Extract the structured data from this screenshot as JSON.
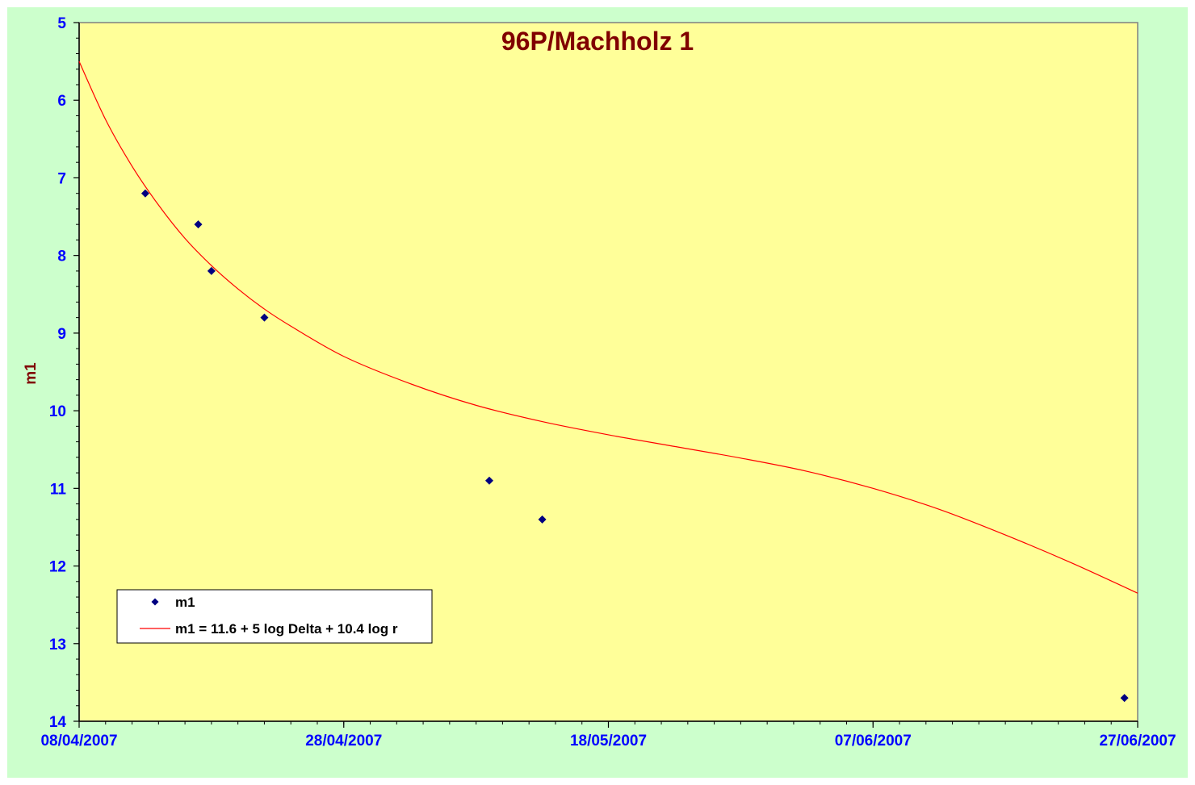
{
  "colors": {
    "chart_area": "#ccffcc",
    "plot_area": "#ffff99",
    "title": "#800000",
    "axis_title": "#800000",
    "tick_labels": "#0000ff",
    "points": "#000080",
    "fit_line": "#ff0000"
  },
  "chart_data": {
    "type": "scatter",
    "title": "96P/Machholz 1",
    "xlabel": "",
    "ylabel": "m1",
    "x_type": "date",
    "xlim": [
      "08/04/2007",
      "27/06/2007"
    ],
    "x_ticks": [
      "08/04/2007",
      "28/04/2007",
      "18/05/2007",
      "07/06/2007",
      "27/06/2007"
    ],
    "ylim": [
      5,
      14
    ],
    "y_inverted": true,
    "y_ticks": [
      5,
      6,
      7,
      8,
      9,
      10,
      11,
      12,
      13,
      14
    ],
    "grid": false,
    "legend_position": "bottom-left",
    "series": [
      {
        "name": "m1",
        "type": "scatter",
        "marker": "diamond",
        "color": "#000080",
        "x": [
          "13/04/2007",
          "17/04/2007",
          "18/04/2007",
          "22/04/2007",
          "09/05/2007",
          "13/05/2007",
          "26/06/2007"
        ],
        "y": [
          7.2,
          7.6,
          8.2,
          8.8,
          10.9,
          11.4,
          13.7
        ]
      },
      {
        "name": "m1 = 11.6 + 5 log Delta + 10.4 log r",
        "type": "line",
        "color": "#ff0000",
        "x": [
          "08/04/2007",
          "10/04/2007",
          "12/04/2007",
          "14/04/2007",
          "16/04/2007",
          "18/04/2007",
          "20/04/2007",
          "22/04/2007",
          "24/04/2007",
          "28/04/2007",
          "03/05/2007",
          "08/05/2007",
          "13/05/2007",
          "18/05/2007",
          "23/05/2007",
          "28/05/2007",
          "02/06/2007",
          "07/06/2007",
          "12/06/2007",
          "17/06/2007",
          "22/06/2007",
          "27/06/2007"
        ],
        "y": [
          5.5,
          6.25,
          6.85,
          7.35,
          7.78,
          8.13,
          8.43,
          8.69,
          8.91,
          9.3,
          9.65,
          9.93,
          10.14,
          10.31,
          10.46,
          10.61,
          10.78,
          11.0,
          11.27,
          11.6,
          11.96,
          12.35
        ]
      }
    ]
  }
}
